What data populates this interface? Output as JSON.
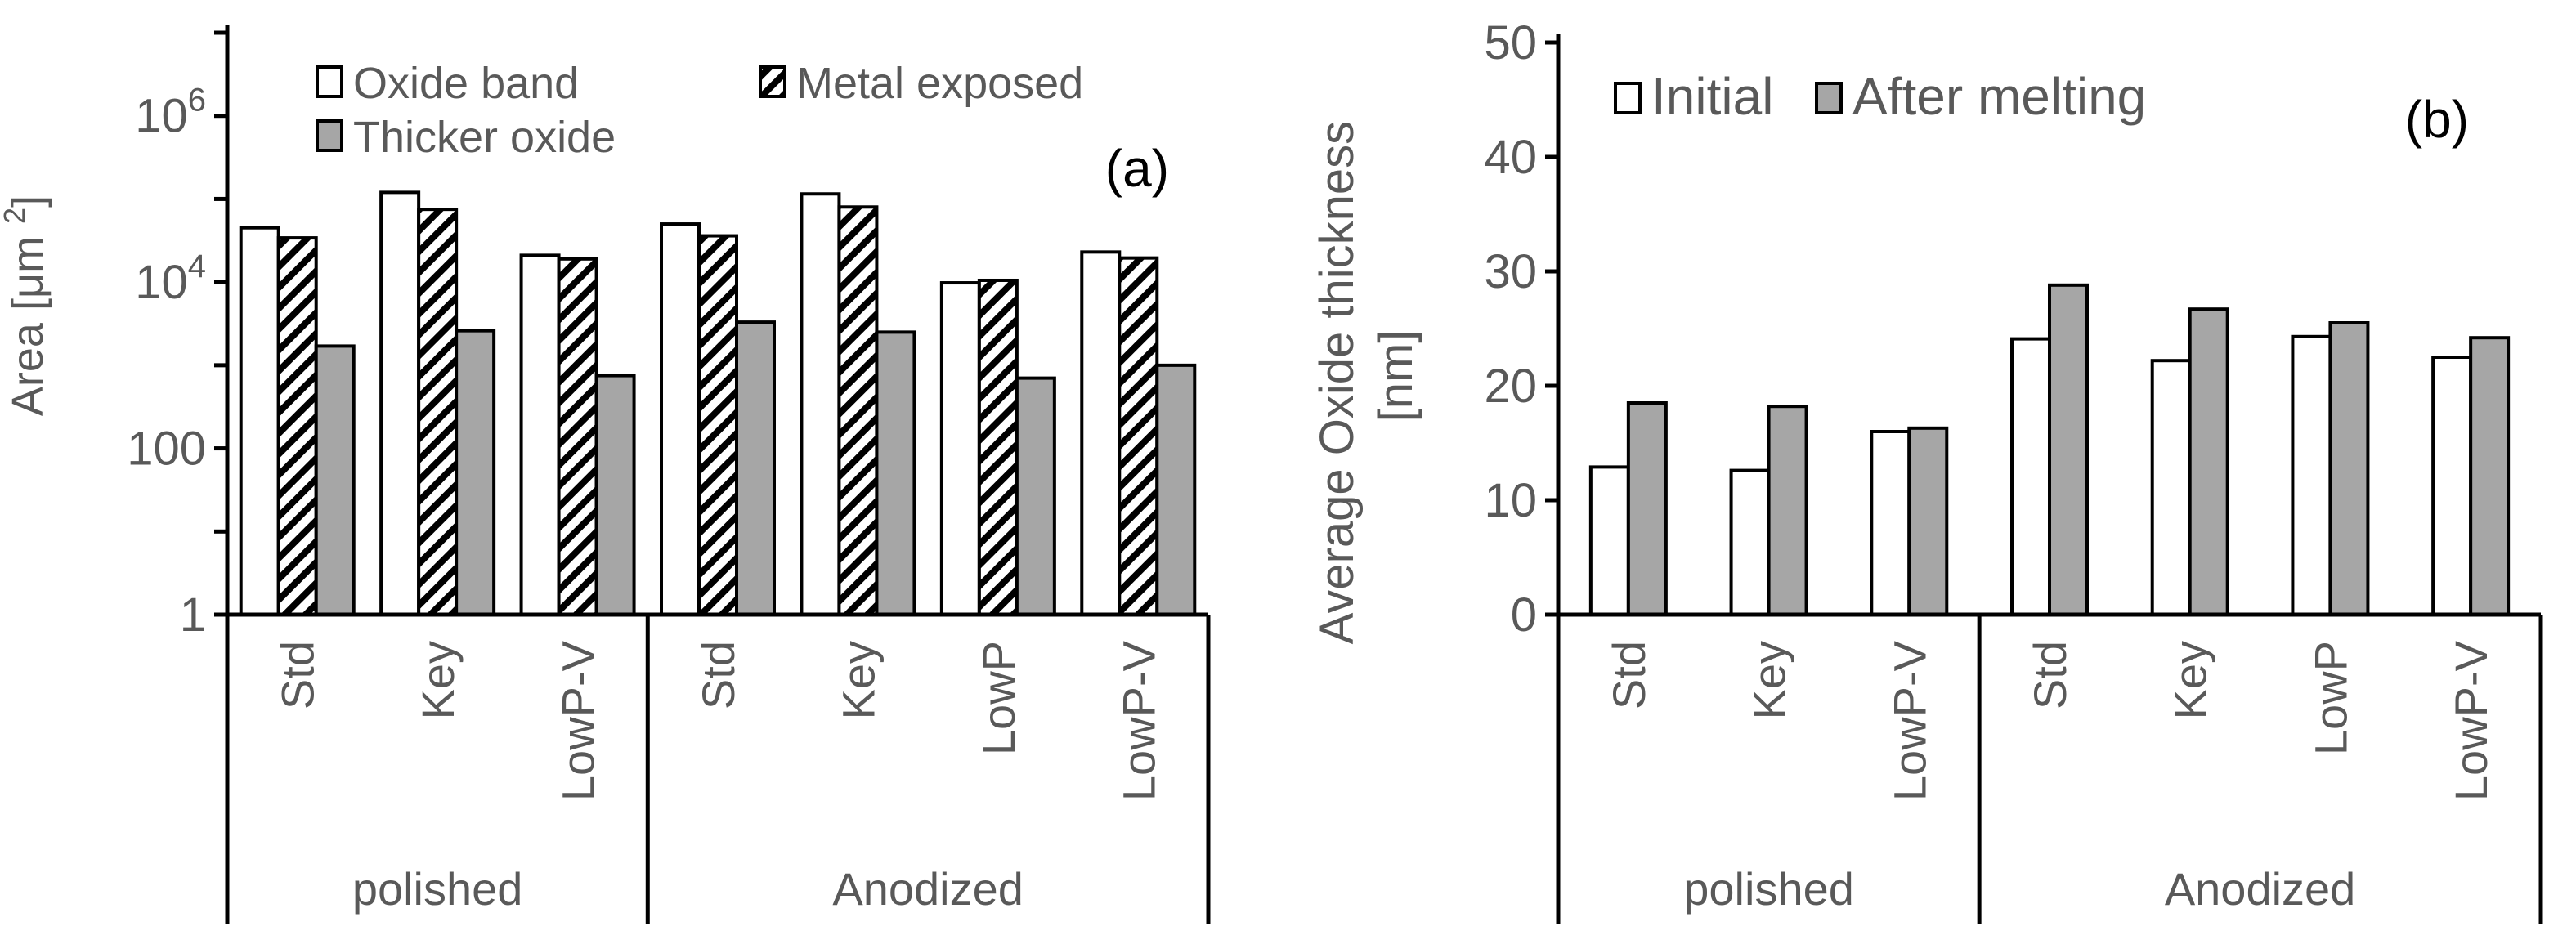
{
  "chart_data": [
    {
      "type": "bar",
      "yscale": "log",
      "title": "",
      "panel_label": "(a)",
      "ylabel": "Area [μm²]",
      "ylim": [
        1,
        10000000
      ],
      "yticks": [
        {
          "value": 1,
          "base": "1",
          "exp": ""
        },
        {
          "value": 100,
          "base": "100",
          "exp": ""
        },
        {
          "value": 10000,
          "base": "10",
          "exp": "4"
        },
        {
          "value": 1000000,
          "base": "10",
          "exp": "6"
        }
      ],
      "categories": [
        "Std",
        "Key",
        "LowP-V",
        "Std",
        "Key",
        "LowP",
        "LowP-V"
      ],
      "groups": [
        {
          "label": "polished",
          "count": 3
        },
        {
          "label": "Anodized",
          "count": 4
        }
      ],
      "series": [
        {
          "name": "Oxide band",
          "style": "white",
          "values": [
            45000,
            120000,
            21000,
            50000,
            115000,
            9800,
            23000
          ]
        },
        {
          "name": "Metal exposed",
          "style": "hatch",
          "values": [
            34000,
            75000,
            19000,
            36000,
            80000,
            10500,
            19500
          ]
        },
        {
          "name": "Thicker oxide",
          "style": "gray",
          "values": [
            1700,
            2600,
            750,
            3300,
            2500,
            700,
            1000
          ]
        }
      ],
      "legend": {
        "rows": [
          [
            "Oxide band",
            "Metal exposed"
          ],
          [
            "Thicker oxide"
          ]
        ],
        "placement": "top"
      }
    },
    {
      "type": "bar",
      "title": "",
      "panel_label": "(b)",
      "ylabel_lines": [
        "Average Oxide thickness",
        "[nm]"
      ],
      "ylim": [
        0,
        50
      ],
      "yticks": [
        0,
        10,
        20,
        30,
        40,
        50
      ],
      "categories": [
        "Std",
        "Key",
        "LowP-V",
        "Std",
        "Key",
        "LowP",
        "LowP-V"
      ],
      "groups": [
        {
          "label": "polished",
          "count": 3
        },
        {
          "label": "Anodized",
          "count": 4
        }
      ],
      "series": [
        {
          "name": "Initial",
          "style": "white",
          "values": [
            12.9,
            12.6,
            16.0,
            24.1,
            22.2,
            24.3,
            22.5
          ]
        },
        {
          "name": "After melting",
          "style": "gray",
          "values": [
            18.5,
            18.2,
            16.3,
            28.8,
            26.7,
            25.5,
            24.2
          ]
        }
      ],
      "legend": {
        "rows": [
          [
            "Initial",
            "After melting"
          ]
        ],
        "placement": "top-left"
      }
    }
  ]
}
